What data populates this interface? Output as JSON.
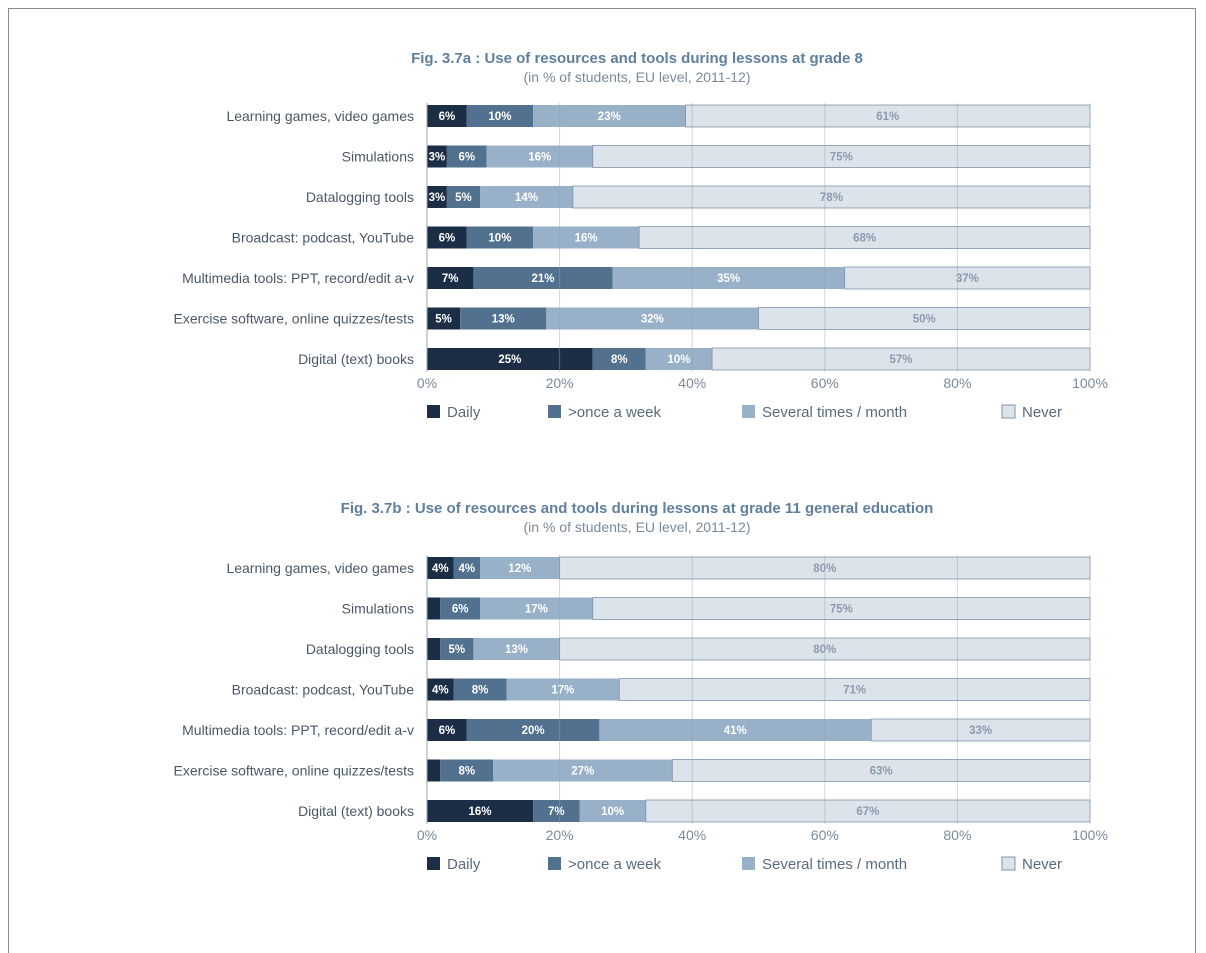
{
  "chart_data": [
    {
      "type": "bar",
      "orientation": "horizontal",
      "stacked": true,
      "title": "Fig. 3.7a : Use of resources and tools during lessons at grade 8",
      "subtitle": "(in % of students, EU level, 2011-12)",
      "categories": [
        "Learning games, video games",
        "Simulations",
        "Datalogging tools",
        "Broadcast: podcast, YouTube",
        "Multimedia tools: PPT, record/edit a-v",
        "Exercise software, online quizzes/tests",
        "Digital (text) books"
      ],
      "series": [
        {
          "name": "Daily",
          "values": [
            6,
            3,
            3,
            6,
            7,
            5,
            25
          ],
          "labels": [
            "6%",
            "3%",
            "3%",
            "6%",
            "7%",
            "5%",
            "25%"
          ]
        },
        {
          "name": ">once a week",
          "values": [
            10,
            6,
            5,
            10,
            21,
            13,
            8
          ],
          "labels": [
            "10%",
            "6%",
            "5%",
            "10%",
            "21%",
            "13%",
            "8%"
          ]
        },
        {
          "name": "Several times / month",
          "values": [
            23,
            16,
            14,
            16,
            35,
            32,
            10
          ],
          "labels": [
            "23%",
            "16%",
            "14%",
            "16%",
            "35%",
            "32%",
            "10%"
          ]
        },
        {
          "name": "Never",
          "values": [
            61,
            75,
            78,
            68,
            37,
            50,
            57
          ],
          "labels": [
            "61%",
            "75%",
            "78%",
            "68%",
            "37%",
            "50%",
            "57%"
          ]
        }
      ],
      "xlim": [
        0,
        100
      ],
      "xticks": [
        "0%",
        "20%",
        "40%",
        "60%",
        "80%",
        "100%"
      ],
      "grid": true,
      "legend": "bottom"
    },
    {
      "type": "bar",
      "orientation": "horizontal",
      "stacked": true,
      "title": "Fig. 3.7b : Use of resources and tools during lessons at grade 11 general education",
      "subtitle": "(in % of students, EU level, 2011-12)",
      "categories": [
        "Learning games, video games",
        "Simulations",
        "Datalogging tools",
        "Broadcast: podcast, YouTube",
        "Multimedia tools: PPT, record/edit a-v",
        "Exercise software, online quizzes/tests",
        "Digital (text) books"
      ],
      "series": [
        {
          "name": "Daily",
          "values": [
            4,
            2,
            2,
            4,
            6,
            2,
            16
          ],
          "labels": [
            "4%",
            "",
            "",
            "4%",
            "6%",
            "",
            "16%"
          ]
        },
        {
          "name": ">once a week",
          "values": [
            4,
            6,
            5,
            8,
            20,
            8,
            7
          ],
          "labels": [
            "4%",
            "6%",
            "5%",
            "8%",
            "20%",
            "8%",
            "7%"
          ]
        },
        {
          "name": "Several times / month",
          "values": [
            12,
            17,
            13,
            17,
            41,
            27,
            10
          ],
          "labels": [
            "12%",
            "17%",
            "13%",
            "17%",
            "41%",
            "27%",
            "10%"
          ]
        },
        {
          "name": "Never",
          "values": [
            80,
            75,
            80,
            71,
            33,
            63,
            67
          ],
          "labels": [
            "80%",
            "75%",
            "80%",
            "71%",
            "33%",
            "63%",
            "67%"
          ]
        }
      ],
      "xlim": [
        0,
        100
      ],
      "xticks": [
        "0%",
        "20%",
        "40%",
        "60%",
        "80%",
        "100%"
      ],
      "grid": true,
      "legend": "bottom"
    }
  ],
  "colors": {
    "daily": "#1c2e45",
    "weekly": "#52718f",
    "monthly": "#98b0c8",
    "never": "#dde3ea",
    "grid": "#9aa5b0",
    "never_border": "#7f93a8"
  }
}
